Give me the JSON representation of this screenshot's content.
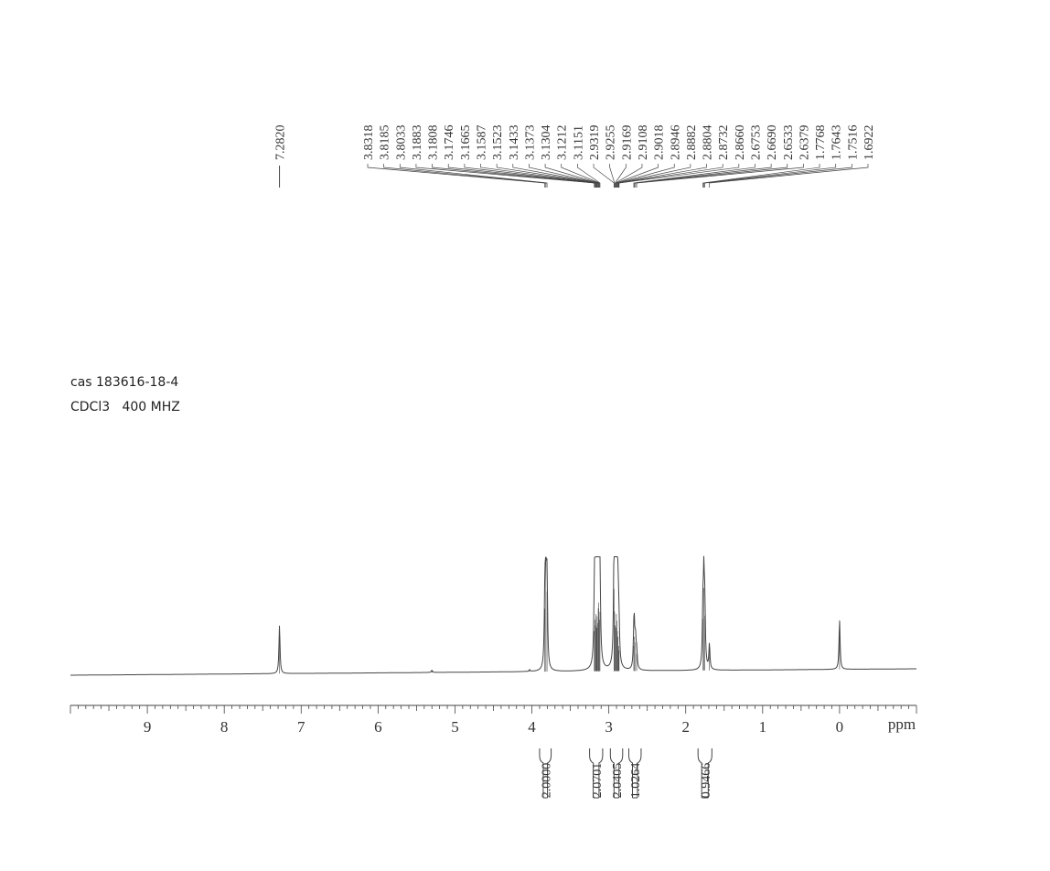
{
  "sample_info": {
    "cas_line": "cas 183616-18-4",
    "solvent_line": "CDCl3   400 MHZ"
  },
  "chart_data": {
    "type": "line",
    "title": "",
    "xlabel": "ppm",
    "ylabel": "",
    "x_axis": {
      "reversed": true,
      "range": [
        -1.0,
        10.0
      ],
      "tick_labels": [
        "9",
        "8",
        "7",
        "6",
        "5",
        "4",
        "3",
        "2",
        "1",
        "0"
      ],
      "tick_values": [
        9,
        8,
        7,
        6,
        5,
        4,
        3,
        2,
        1,
        0
      ]
    },
    "grid": false,
    "peak_labels": [
      "7.2820",
      "3.8318",
      "3.8185",
      "3.8033",
      "3.1883",
      "3.1808",
      "3.1746",
      "3.1665",
      "3.1587",
      "3.1523",
      "3.1433",
      "3.1373",
      "3.1304",
      "3.1212",
      "3.1151",
      "2.9319",
      "2.9255",
      "2.9169",
      "2.9108",
      "2.9018",
      "2.8946",
      "2.8882",
      "2.8804",
      "2.8732",
      "2.8660",
      "2.6753",
      "2.6690",
      "2.6533",
      "2.6379",
      "1.7768",
      "1.7643",
      "1.7516",
      "1.6922"
    ],
    "peaks": [
      {
        "ppm": 7.282,
        "height": 0.42
      },
      {
        "ppm": 5.3,
        "height": 0.02
      },
      {
        "ppm": 4.03,
        "height": 0.015
      },
      {
        "ppm": 3.8318,
        "height": 0.55
      },
      {
        "ppm": 3.8185,
        "height": 0.98
      },
      {
        "ppm": 3.8033,
        "height": 0.7
      },
      {
        "ppm": 3.1883,
        "height": 0.35
      },
      {
        "ppm": 3.1808,
        "height": 0.45
      },
      {
        "ppm": 3.1746,
        "height": 0.4
      },
      {
        "ppm": 3.1665,
        "height": 0.5
      },
      {
        "ppm": 3.1587,
        "height": 0.38
      },
      {
        "ppm": 3.1523,
        "height": 0.48
      },
      {
        "ppm": 3.1433,
        "height": 0.42
      },
      {
        "ppm": 3.1373,
        "height": 0.55
      },
      {
        "ppm": 3.1304,
        "height": 0.6
      },
      {
        "ppm": 3.1212,
        "height": 0.45
      },
      {
        "ppm": 3.1151,
        "height": 0.52
      },
      {
        "ppm": 2.9319,
        "height": 0.72
      },
      {
        "ppm": 2.9255,
        "height": 0.52
      },
      {
        "ppm": 2.9169,
        "height": 0.4
      },
      {
        "ppm": 2.9108,
        "height": 0.38
      },
      {
        "ppm": 2.9018,
        "height": 0.5
      },
      {
        "ppm": 2.8946,
        "height": 0.44
      },
      {
        "ppm": 2.8882,
        "height": 0.35
      },
      {
        "ppm": 2.8804,
        "height": 0.3
      },
      {
        "ppm": 2.8732,
        "height": 0.22
      },
      {
        "ppm": 2.866,
        "height": 0.18
      },
      {
        "ppm": 2.6753,
        "height": 0.22
      },
      {
        "ppm": 2.669,
        "height": 0.3
      },
      {
        "ppm": 2.6533,
        "height": 0.25
      },
      {
        "ppm": 2.6379,
        "height": 0.15
      },
      {
        "ppm": 1.7768,
        "height": 0.45
      },
      {
        "ppm": 1.7643,
        "height": 0.72
      },
      {
        "ppm": 1.7516,
        "height": 0.48
      },
      {
        "ppm": 1.6922,
        "height": 0.22
      },
      {
        "ppm": 0.0,
        "height": 0.43
      }
    ],
    "integrations": [
      {
        "value": "2.0000",
        "from": 3.9,
        "to": 3.75
      },
      {
        "value": "2.0701",
        "from": 3.25,
        "to": 3.08
      },
      {
        "value": "2.0405",
        "from": 2.98,
        "to": 2.82
      },
      {
        "value": "1.0264",
        "from": 2.74,
        "to": 2.58
      },
      {
        "value": "0.9466",
        "from": 1.84,
        "to": 1.66
      }
    ]
  }
}
